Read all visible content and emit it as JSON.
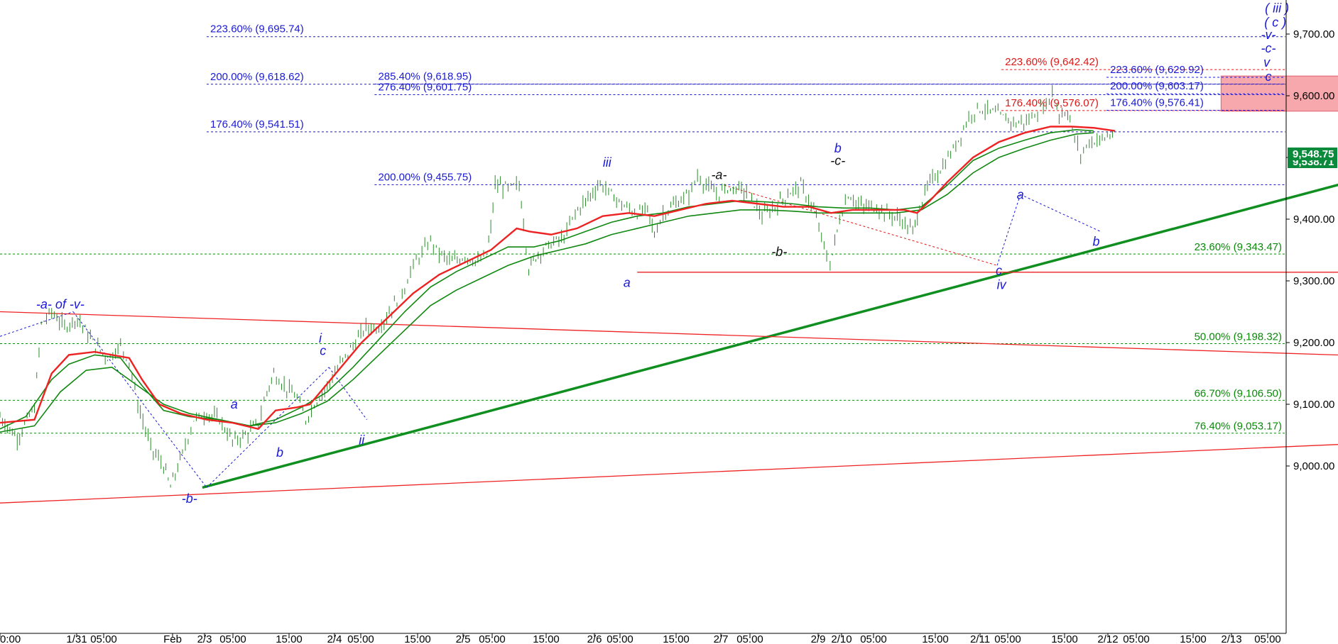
{
  "chart_data": {
    "type": "candlestick",
    "xlabel": "",
    "ylabel": "",
    "ylim": [
      8935,
      9750
    ],
    "y_ticks": [
      "9,000.00",
      "9,100.00",
      "9,200.00",
      "9,300.00",
      "9,400.00",
      "9,500.00",
      "9,600.00",
      "9,700.00"
    ],
    "y_tick_values": [
      9000,
      9100,
      9200,
      9300,
      9400,
      9500,
      9600,
      9700
    ],
    "x_ticks": [
      "0:00",
      "1/31",
      "05:00",
      "Feb",
      "2/3",
      "05:00",
      "15:00",
      "2/4",
      "05:00",
      "15:00",
      "2/5",
      "05:00",
      "15:00",
      "2/6",
      "05:00",
      "15:00",
      "2/7",
      "05:00",
      "2/9",
      "2/10",
      "05:00",
      "15:00",
      "2/11",
      "05:00",
      "15:00",
      "2/12",
      "05:00",
      "15:00",
      "2/13",
      "05:00"
    ],
    "last_price": "9,548.75",
    "last_price_value": 9548.75,
    "secondary_price": "9,538.71",
    "grid": false,
    "colors": {
      "candles": "#2e8b2e",
      "ma_red": "#ee2222",
      "ma_green": "#118811",
      "fib_blue": "#1a1ad6",
      "fib_red": "#e01515",
      "fib_green": "#0a8a0a",
      "trend_green": "#0f8f1f",
      "box": "#f7a8ac",
      "badge": "#0a8a3a"
    },
    "price_path": [
      [
        0,
        9080
      ],
      [
        20,
        9045
      ],
      [
        40,
        9095
      ],
      [
        48,
        9230
      ],
      [
        60,
        9250
      ],
      [
        75,
        9225
      ],
      [
        90,
        9240
      ],
      [
        108,
        9200
      ],
      [
        125,
        9175
      ],
      [
        140,
        9195
      ],
      [
        150,
        9170
      ],
      [
        160,
        9100
      ],
      [
        175,
        9030
      ],
      [
        190,
        9000
      ],
      [
        198,
        8965
      ],
      [
        212,
        9020
      ],
      [
        225,
        9075
      ],
      [
        240,
        9085
      ],
      [
        255,
        9075
      ],
      [
        270,
        9040
      ],
      [
        285,
        9050
      ],
      [
        300,
        9070
      ],
      [
        310,
        9120
      ],
      [
        318,
        9150
      ],
      [
        330,
        9130
      ],
      [
        345,
        9110
      ],
      [
        355,
        9075
      ],
      [
        365,
        9100
      ],
      [
        380,
        9130
      ],
      [
        395,
        9165
      ],
      [
        410,
        9195
      ],
      [
        425,
        9225
      ],
      [
        440,
        9225
      ],
      [
        455,
        9255
      ],
      [
        470,
        9290
      ],
      [
        480,
        9325
      ],
      [
        490,
        9345
      ],
      [
        500,
        9365
      ],
      [
        510,
        9345
      ],
      [
        525,
        9330
      ],
      [
        540,
        9340
      ],
      [
        555,
        9330
      ],
      [
        565,
        9340
      ],
      [
        570,
        9385
      ],
      [
        575,
        9455
      ],
      [
        590,
        9450
      ],
      [
        603,
        9455
      ],
      [
        608,
        9395
      ],
      [
        614,
        9320
      ],
      [
        625,
        9345
      ],
      [
        640,
        9360
      ],
      [
        655,
        9370
      ],
      [
        668,
        9410
      ],
      [
        680,
        9430
      ],
      [
        697,
        9458
      ],
      [
        710,
        9440
      ],
      [
        725,
        9420
      ],
      [
        740,
        9410
      ],
      [
        752,
        9415
      ],
      [
        760,
        9375
      ],
      [
        770,
        9410
      ],
      [
        785,
        9425
      ],
      [
        800,
        9440
      ],
      [
        810,
        9470
      ],
      [
        820,
        9455
      ],
      [
        832,
        9440
      ],
      [
        845,
        9450
      ],
      [
        858,
        9450
      ],
      [
        870,
        9440
      ],
      [
        885,
        9405
      ],
      [
        900,
        9420
      ],
      [
        915,
        9440
      ],
      [
        930,
        9455
      ],
      [
        945,
        9415
      ],
      [
        960,
        9340
      ],
      [
        964,
        9325
      ],
      [
        975,
        9400
      ],
      [
        985,
        9440
      ],
      [
        1000,
        9420
      ],
      [
        1015,
        9420
      ],
      [
        1030,
        9410
      ],
      [
        1045,
        9400
      ],
      [
        1060,
        9380
      ],
      [
        1068,
        9420
      ],
      [
        1080,
        9460
      ],
      [
        1095,
        9485
      ],
      [
        1110,
        9520
      ],
      [
        1125,
        9565
      ],
      [
        1135,
        9580
      ],
      [
        1150,
        9575
      ],
      [
        1165,
        9565
      ],
      [
        1180,
        9555
      ],
      [
        1195,
        9560
      ],
      [
        1205,
        9575
      ],
      [
        1215,
        9585
      ],
      [
        1222,
        9608
      ],
      [
        1230,
        9570
      ],
      [
        1240,
        9575
      ],
      [
        1248,
        9530
      ],
      [
        1255,
        9505
      ],
      [
        1265,
        9525
      ],
      [
        1280,
        9530
      ],
      [
        1295,
        9540
      ]
    ],
    "ma_red": [
      [
        0,
        9070
      ],
      [
        40,
        9075
      ],
      [
        60,
        9150
      ],
      [
        80,
        9180
      ],
      [
        110,
        9185
      ],
      [
        130,
        9180
      ],
      [
        150,
        9175
      ],
      [
        165,
        9140
      ],
      [
        185,
        9100
      ],
      [
        210,
        9085
      ],
      [
        240,
        9075
      ],
      [
        270,
        9070
      ],
      [
        300,
        9060
      ],
      [
        320,
        9090
      ],
      [
        345,
        9095
      ],
      [
        360,
        9100
      ],
      [
        390,
        9150
      ],
      [
        420,
        9200
      ],
      [
        450,
        9240
      ],
      [
        480,
        9280
      ],
      [
        510,
        9310
      ],
      [
        540,
        9330
      ],
      [
        570,
        9350
      ],
      [
        600,
        9385
      ],
      [
        615,
        9380
      ],
      [
        640,
        9375
      ],
      [
        670,
        9385
      ],
      [
        700,
        9405
      ],
      [
        730,
        9410
      ],
      [
        760,
        9405
      ],
      [
        790,
        9415
      ],
      [
        820,
        9425
      ],
      [
        850,
        9430
      ],
      [
        880,
        9425
      ],
      [
        910,
        9420
      ],
      [
        940,
        9420
      ],
      [
        965,
        9410
      ],
      [
        990,
        9415
      ],
      [
        1020,
        9415
      ],
      [
        1050,
        9415
      ],
      [
        1065,
        9410
      ],
      [
        1080,
        9430
      ],
      [
        1100,
        9460
      ],
      [
        1130,
        9500
      ],
      [
        1160,
        9525
      ],
      [
        1190,
        9540
      ],
      [
        1220,
        9550
      ],
      [
        1245,
        9550
      ],
      [
        1270,
        9548
      ],
      [
        1295,
        9543
      ]
    ],
    "ma_green1": [
      [
        0,
        9060
      ],
      [
        30,
        9080
      ],
      [
        60,
        9140
      ],
      [
        80,
        9165
      ],
      [
        110,
        9180
      ],
      [
        140,
        9175
      ],
      [
        165,
        9130
      ],
      [
        190,
        9090
      ],
      [
        220,
        9080
      ],
      [
        255,
        9075
      ],
      [
        290,
        9065
      ],
      [
        320,
        9075
      ],
      [
        350,
        9095
      ],
      [
        380,
        9120
      ],
      [
        410,
        9160
      ],
      [
        440,
        9205
      ],
      [
        470,
        9250
      ],
      [
        500,
        9290
      ],
      [
        530,
        9315
      ],
      [
        560,
        9335
      ],
      [
        590,
        9355
      ],
      [
        620,
        9355
      ],
      [
        650,
        9365
      ],
      [
        680,
        9380
      ],
      [
        710,
        9395
      ],
      [
        740,
        9405
      ],
      [
        770,
        9410
      ],
      [
        800,
        9420
      ],
      [
        830,
        9425
      ],
      [
        860,
        9430
      ],
      [
        890,
        9428
      ],
      [
        920,
        9425
      ],
      [
        950,
        9420
      ],
      [
        980,
        9418
      ],
      [
        1010,
        9418
      ],
      [
        1040,
        9415
      ],
      [
        1070,
        9420
      ],
      [
        1100,
        9455
      ],
      [
        1130,
        9495
      ],
      [
        1160,
        9515
      ],
      [
        1190,
        9528
      ],
      [
        1220,
        9540
      ],
      [
        1250,
        9545
      ],
      [
        1270,
        9543
      ]
    ],
    "ma_green2": [
      [
        0,
        9055
      ],
      [
        40,
        9065
      ],
      [
        70,
        9120
      ],
      [
        100,
        9155
      ],
      [
        130,
        9160
      ],
      [
        160,
        9130
      ],
      [
        190,
        9100
      ],
      [
        220,
        9085
      ],
      [
        255,
        9075
      ],
      [
        290,
        9065
      ],
      [
        320,
        9070
      ],
      [
        350,
        9085
      ],
      [
        380,
        9105
      ],
      [
        410,
        9140
      ],
      [
        440,
        9180
      ],
      [
        470,
        9220
      ],
      [
        500,
        9260
      ],
      [
        530,
        9285
      ],
      [
        560,
        9305
      ],
      [
        590,
        9325
      ],
      [
        620,
        9340
      ],
      [
        650,
        9350
      ],
      [
        680,
        9360
      ],
      [
        710,
        9375
      ],
      [
        740,
        9385
      ],
      [
        770,
        9395
      ],
      [
        800,
        9405
      ],
      [
        830,
        9410
      ],
      [
        860,
        9415
      ],
      [
        890,
        9415
      ],
      [
        920,
        9413
      ],
      [
        950,
        9410
      ],
      [
        980,
        9410
      ],
      [
        1010,
        9410
      ],
      [
        1040,
        9410
      ],
      [
        1070,
        9415
      ],
      [
        1100,
        9440
      ],
      [
        1130,
        9475
      ],
      [
        1160,
        9500
      ],
      [
        1190,
        9515
      ],
      [
        1220,
        9528
      ],
      [
        1250,
        9538
      ],
      [
        1270,
        9540
      ]
    ],
    "fib_levels": [
      {
        "label": "223.60% (9,695.74)",
        "value": 9695.74,
        "x0": 240,
        "x1": 1810,
        "color": "blue",
        "anchor": "left"
      },
      {
        "label": "200.00% (9,618.62)",
        "value": 9618.62,
        "x0": 240,
        "x1": 1810,
        "color": "blue",
        "anchor": "left"
      },
      {
        "label": "176.40% (9,541.51)",
        "value": 9541.51,
        "x0": 240,
        "x1": 1810,
        "color": "blue",
        "anchor": "left"
      },
      {
        "label": "285.40% (9,618.95)",
        "value": 9618.95,
        "x0": 435,
        "x1": 1810,
        "color": "blue",
        "anchor": "left"
      },
      {
        "label": "276.40% (9,601.75)",
        "value": 9601.75,
        "x0": 435,
        "x1": 1810,
        "color": "blue",
        "anchor": "left"
      },
      {
        "label": "200.00% (9,455.75)",
        "value": 9455.75,
        "x0": 435,
        "x1": 1810,
        "color": "blue",
        "anchor": "left"
      },
      {
        "label": "223.60% (9,642.42)",
        "value": 9642.42,
        "x0": 1163,
        "x1": 1810,
        "color": "red",
        "anchor": "left"
      },
      {
        "label": "176.40% (9,576.07)",
        "value": 9576.07,
        "x0": 1163,
        "x1": 1810,
        "color": "red",
        "anchor": "left"
      },
      {
        "label": "223.60% (9,629.92)",
        "value": 9629.92,
        "x0": 1285,
        "x1": 1810,
        "color": "blue",
        "anchor": "left"
      },
      {
        "label": "200.00% (9,603.17)",
        "value": 9603.17,
        "x0": 1285,
        "x1": 1810,
        "color": "blue",
        "anchor": "left"
      },
      {
        "label": "176.40% (9,576.41)",
        "value": 9576.41,
        "x0": 1285,
        "x1": 1810,
        "color": "blue",
        "anchor": "left"
      },
      {
        "label": "23.60% (9,343.47)",
        "value": 9343.47,
        "x0": 0,
        "x1": 1810,
        "color": "green",
        "anchor": "right"
      },
      {
        "label": "50.00% (9,198.32)",
        "value": 9198.32,
        "x0": 0,
        "x1": 1810,
        "color": "green",
        "anchor": "right"
      },
      {
        "label": "66.70% (9,106.50)",
        "value": 9106.5,
        "x0": 0,
        "x1": 1810,
        "color": "green",
        "anchor": "right"
      },
      {
        "label": "76.40% (9,053.17)",
        "value": 9053.17,
        "x0": 0,
        "x1": 1810,
        "color": "green",
        "anchor": "right"
      }
    ],
    "wave_labels": [
      {
        "text": "-a- of -v-",
        "x": 70,
        "y": 9255,
        "color": "blue"
      },
      {
        "text": "-b-",
        "x": 220,
        "y": 8940,
        "color": "blue"
      },
      {
        "text": "a",
        "x": 272,
        "y": 9093,
        "color": "blue"
      },
      {
        "text": "b",
        "x": 325,
        "y": 9015,
        "color": "blue"
      },
      {
        "text": "i",
        "x": 372,
        "y": 9200,
        "color": "blue"
      },
      {
        "text": "c",
        "x": 375,
        "y": 9180,
        "color": "blue"
      },
      {
        "text": "ii",
        "x": 420,
        "y": 9035,
        "color": "blue"
      },
      {
        "text": "iii",
        "x": 705,
        "y": 9485,
        "color": "blue"
      },
      {
        "text": "a",
        "x": 728,
        "y": 9290,
        "color": "blue"
      },
      {
        "text": "-a-",
        "x": 835,
        "y": 9465,
        "color": "black"
      },
      {
        "text": "-b-",
        "x": 905,
        "y": 9340,
        "color": "black"
      },
      {
        "text": "b",
        "x": 973,
        "y": 9508,
        "color": "blue"
      },
      {
        "text": "-c-",
        "x": 973,
        "y": 9488,
        "color": "black"
      },
      {
        "text": "a",
        "x": 1185,
        "y": 9433,
        "color": "blue"
      },
      {
        "text": "c",
        "x": 1160,
        "y": 9310,
        "color": "blue"
      },
      {
        "text": "iv",
        "x": 1163,
        "y": 9287,
        "color": "blue"
      },
      {
        "text": "b",
        "x": 1273,
        "y": 9357,
        "color": "blue"
      },
      {
        "text": "( iii )",
        "x": 1483,
        "y": 9735,
        "color": "blue"
      },
      {
        "text": "( c )",
        "x": 1481,
        "y": 9712,
        "color": "blue"
      },
      {
        "text": "-v-",
        "x": 1473,
        "y": 9692,
        "color": "blue"
      },
      {
        "text": "-c-",
        "x": 1473,
        "y": 9670,
        "color": "blue"
      },
      {
        "text": "v",
        "x": 1471,
        "y": 9647,
        "color": "blue"
      },
      {
        "text": "c",
        "x": 1473,
        "y": 9624,
        "color": "blue"
      }
    ],
    "trend_lines": [
      {
        "from": [
          235,
          8965
        ],
        "to": [
          1910,
          9588
        ],
        "color": "green",
        "width": 3.5
      },
      {
        "from": [
          0,
          9250
        ],
        "to": [
          1884,
          9165
        ],
        "color": "red",
        "width": 1.3
      },
      {
        "from": [
          0,
          8940
        ],
        "to": [
          1884,
          9055
        ],
        "color": "red",
        "width": 1.3
      },
      {
        "from": [
          740,
          9314
        ],
        "to": [
          1810,
          9314
        ],
        "color": "red",
        "width": 1.3
      }
    ],
    "dashed_wave_lines": [
      [
        [
          0,
          9210
        ],
        [
          85,
          9250
        ]
      ],
      [
        [
          85,
          9250
        ],
        [
          240,
          8965
        ]
      ],
      [
        [
          240,
          8965
        ],
        [
          382,
          9160
        ]
      ],
      [
        [
          382,
          9160
        ],
        [
          426,
          9075
        ]
      ],
      [
        [
          841,
          9455
        ],
        [
          1158,
          9325
        ]
      ],
      [
        [
          1158,
          9325
        ],
        [
          1185,
          9440
        ]
      ],
      [
        [
          1185,
          9440
        ],
        [
          1278,
          9380
        ]
      ]
    ],
    "target_box": {
      "x0": 1418,
      "x1": 1650,
      "y0": 9575,
      "y1": 9632
    }
  }
}
